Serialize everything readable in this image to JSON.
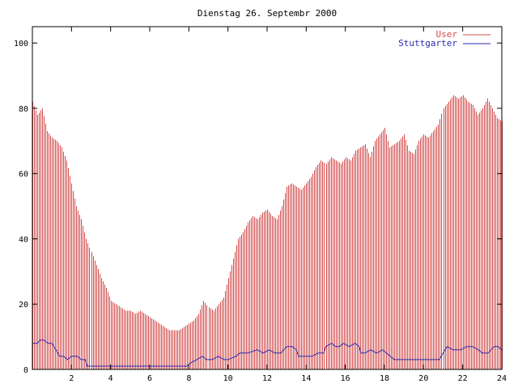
{
  "chart_data": {
    "type": "bar",
    "title": "Dienstag 26. Septembr 2000",
    "xlabel": "",
    "ylabel": "",
    "xlim": [
      0,
      24
    ],
    "ylim": [
      0,
      105
    ],
    "xticks": [
      2,
      4,
      6,
      8,
      10,
      12,
      14,
      16,
      18,
      20,
      22,
      24
    ],
    "yticks": [
      0,
      20,
      40,
      60,
      80,
      100
    ],
    "grid": false,
    "legend_position": "top-right",
    "series": [
      {
        "name": "User",
        "style": "impulses",
        "color": "#d24b4b",
        "points": [
          [
            0.0,
            82
          ],
          [
            0.25,
            78
          ],
          [
            0.5,
            80
          ],
          [
            0.75,
            73
          ],
          [
            1.0,
            71
          ],
          [
            1.25,
            70
          ],
          [
            1.5,
            68
          ],
          [
            1.75,
            64
          ],
          [
            2.0,
            57
          ],
          [
            2.25,
            50
          ],
          [
            2.5,
            46
          ],
          [
            2.75,
            40
          ],
          [
            3.0,
            36
          ],
          [
            3.25,
            32
          ],
          [
            3.5,
            28
          ],
          [
            3.75,
            25
          ],
          [
            4.0,
            21
          ],
          [
            4.25,
            20
          ],
          [
            4.5,
            19
          ],
          [
            4.75,
            18
          ],
          [
            5.0,
            18
          ],
          [
            5.25,
            17
          ],
          [
            5.5,
            18
          ],
          [
            5.75,
            17
          ],
          [
            6.0,
            16
          ],
          [
            6.25,
            15
          ],
          [
            6.5,
            14
          ],
          [
            6.75,
            13
          ],
          [
            7.0,
            12
          ],
          [
            7.25,
            12
          ],
          [
            7.5,
            12
          ],
          [
            7.75,
            13
          ],
          [
            8.0,
            14
          ],
          [
            8.25,
            15
          ],
          [
            8.5,
            17
          ],
          [
            8.75,
            21
          ],
          [
            9.0,
            19
          ],
          [
            9.25,
            18
          ],
          [
            9.5,
            20
          ],
          [
            9.75,
            22
          ],
          [
            10.0,
            28
          ],
          [
            10.25,
            34
          ],
          [
            10.5,
            40
          ],
          [
            10.75,
            42
          ],
          [
            11.0,
            45
          ],
          [
            11.25,
            47
          ],
          [
            11.5,
            46
          ],
          [
            11.75,
            48
          ],
          [
            12.0,
            49
          ],
          [
            12.25,
            47
          ],
          [
            12.5,
            46
          ],
          [
            12.75,
            50
          ],
          [
            13.0,
            56
          ],
          [
            13.25,
            57
          ],
          [
            13.5,
            56
          ],
          [
            13.75,
            55
          ],
          [
            14.0,
            57
          ],
          [
            14.25,
            59
          ],
          [
            14.5,
            62
          ],
          [
            14.75,
            64
          ],
          [
            15.0,
            63
          ],
          [
            15.25,
            65
          ],
          [
            15.5,
            64
          ],
          [
            15.75,
            63
          ],
          [
            16.0,
            65
          ],
          [
            16.25,
            64
          ],
          [
            16.5,
            67
          ],
          [
            16.75,
            68
          ],
          [
            17.0,
            69
          ],
          [
            17.25,
            65
          ],
          [
            17.5,
            70
          ],
          [
            17.75,
            72
          ],
          [
            18.0,
            74
          ],
          [
            18.25,
            68
          ],
          [
            18.5,
            69
          ],
          [
            18.75,
            70
          ],
          [
            19.0,
            72
          ],
          [
            19.25,
            67
          ],
          [
            19.5,
            66
          ],
          [
            19.75,
            70
          ],
          [
            20.0,
            72
          ],
          [
            20.25,
            71
          ],
          [
            20.5,
            73
          ],
          [
            20.75,
            75
          ],
          [
            21.0,
            80
          ],
          [
            21.25,
            82
          ],
          [
            21.5,
            84
          ],
          [
            21.75,
            83
          ],
          [
            22.0,
            84
          ],
          [
            22.25,
            82
          ],
          [
            22.5,
            81
          ],
          [
            22.75,
            78
          ],
          [
            23.0,
            80
          ],
          [
            23.25,
            83
          ],
          [
            23.5,
            80
          ],
          [
            23.75,
            77
          ],
          [
            24.0,
            76
          ]
        ]
      },
      {
        "name": "Stuttgarter",
        "style": "line",
        "color": "#2a2ab4",
        "points": [
          [
            0.0,
            8
          ],
          [
            0.25,
            8
          ],
          [
            0.4,
            9
          ],
          [
            0.6,
            9
          ],
          [
            0.8,
            8
          ],
          [
            1.0,
            8
          ],
          [
            1.2,
            6
          ],
          [
            1.4,
            4
          ],
          [
            1.6,
            4
          ],
          [
            1.8,
            3
          ],
          [
            2.0,
            4
          ],
          [
            2.3,
            4
          ],
          [
            2.5,
            3
          ],
          [
            2.7,
            3
          ],
          [
            2.8,
            1
          ],
          [
            4.0,
            1
          ],
          [
            6.0,
            1
          ],
          [
            7.9,
            1
          ],
          [
            8.1,
            2
          ],
          [
            8.4,
            3
          ],
          [
            8.7,
            4
          ],
          [
            8.9,
            3
          ],
          [
            9.2,
            3
          ],
          [
            9.5,
            4
          ],
          [
            9.8,
            3
          ],
          [
            10.0,
            3
          ],
          [
            10.4,
            4
          ],
          [
            10.6,
            5
          ],
          [
            11.0,
            5
          ],
          [
            11.5,
            6
          ],
          [
            11.8,
            5
          ],
          [
            12.1,
            6
          ],
          [
            12.4,
            5
          ],
          [
            12.7,
            5
          ],
          [
            13.0,
            7
          ],
          [
            13.3,
            7
          ],
          [
            13.5,
            6
          ],
          [
            13.6,
            4
          ],
          [
            14.0,
            4
          ],
          [
            14.3,
            4
          ],
          [
            14.6,
            5
          ],
          [
            14.9,
            5
          ],
          [
            15.0,
            7
          ],
          [
            15.3,
            8
          ],
          [
            15.5,
            7
          ],
          [
            15.7,
            7
          ],
          [
            15.9,
            8
          ],
          [
            16.2,
            7
          ],
          [
            16.5,
            8
          ],
          [
            16.7,
            7
          ],
          [
            16.8,
            5
          ],
          [
            17.0,
            5
          ],
          [
            17.3,
            6
          ],
          [
            17.6,
            5
          ],
          [
            17.9,
            6
          ],
          [
            18.1,
            5
          ],
          [
            18.3,
            4
          ],
          [
            18.5,
            3
          ],
          [
            19.0,
            3
          ],
          [
            19.3,
            3
          ],
          [
            19.6,
            3
          ],
          [
            20.0,
            3
          ],
          [
            20.5,
            3
          ],
          [
            20.8,
            3
          ],
          [
            21.0,
            5
          ],
          [
            21.2,
            7
          ],
          [
            21.5,
            6
          ],
          [
            21.9,
            6
          ],
          [
            22.2,
            7
          ],
          [
            22.5,
            7
          ],
          [
            22.8,
            6
          ],
          [
            23.0,
            5
          ],
          [
            23.3,
            5
          ],
          [
            23.6,
            7
          ],
          [
            23.8,
            7
          ],
          [
            24.0,
            6
          ]
        ]
      }
    ]
  }
}
